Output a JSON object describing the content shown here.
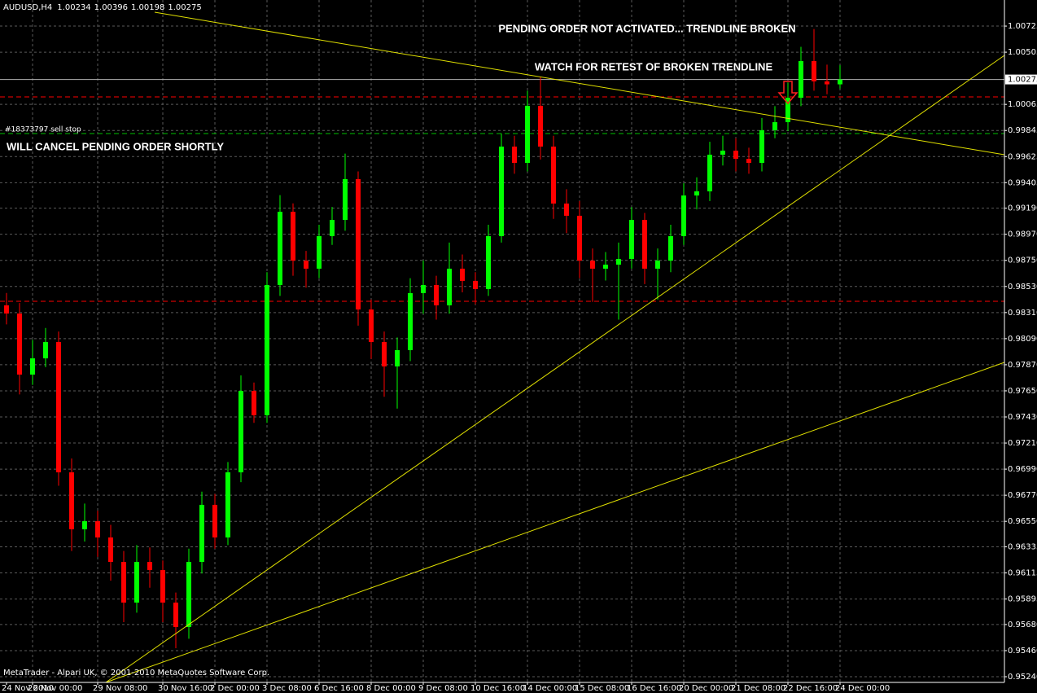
{
  "chart_data": {
    "type": "candlestick",
    "symbol": "AUDUSD,H4",
    "annotations": [
      "PENDING ORDER NOT ACTIVATED... TRENDLINE BROKEN",
      "WATCH FOR RETEST OF BROKEN TRENDLINE",
      "WILL CANCEL PENDING ORDER SHORTLY"
    ],
    "footer": "MetaTrader - Alpari UK, © 2001-2010 MetaQuotes Software Corp.",
    "categories": [
      "24 Nov 2010",
      null,
      "26 Nov 00:00",
      null,
      null,
      null,
      null,
      "29 Nov 08:00",
      null,
      null,
      null,
      null,
      "30 Nov 16:00",
      null,
      null,
      null,
      "2 Dec 00:00",
      null,
      null,
      null,
      "3 Dec 08:00",
      null,
      null,
      null,
      "6 Dec 16:00",
      null,
      null,
      null,
      "8 Dec 00:00",
      null,
      null,
      null,
      "9 Dec 08:00",
      null,
      null,
      null,
      "10 Dec 16:00",
      null,
      null,
      null,
      "14 Dec 00:00",
      null,
      null,
      null,
      "15 Dec 08:00",
      null,
      null,
      null,
      "16 Dec 16:00",
      null,
      null,
      null,
      "20 Dec 00:00",
      null,
      null,
      null,
      "21 Dec 08:00",
      null,
      null,
      null,
      "22 Dec 16:00",
      null,
      null,
      null,
      "24 Dec 00:00"
    ],
    "open": [
      0.98371,
      0.98302,
      0.97787,
      0.97924,
      0.98062,
      0.96963,
      0.96483,
      0.96551,
      0.96414,
      0.96208,
      0.95865,
      0.96208,
      0.96139,
      0.95865,
      0.95659,
      0.96208,
      0.96689,
      0.96414,
      0.96963,
      0.9765,
      0.97444,
      0.98542,
      0.9916,
      0.98748,
      0.9868,
      0.98954,
      0.99091,
      0.99435,
      0.98336,
      0.98062,
      0.97856,
      0.97993,
      0.98474,
      0.98542,
      0.98371,
      0.9868,
      0.98577,
      0.98508,
      0.98954,
      0.99709,
      0.99572,
      1.00053,
      0.99709,
      0.99229,
      0.99126,
      0.98748,
      0.9868,
      0.98714,
      0.98762,
      0.99091,
      0.9868,
      0.98748,
      0.98954,
      0.99297,
      0.99332,
      0.99641,
      0.99675,
      0.99606,
      0.99572,
      0.99847,
      0.99915,
      1.00121,
      1.0043,
      1.00259,
      1.00234
    ],
    "high": [
      0.98475,
      0.9839,
      0.9808,
      0.9818,
      0.9815,
      0.9708,
      0.967,
      0.9664,
      0.9652,
      0.963,
      0.9635,
      0.9633,
      0.9622,
      0.9595,
      0.9632,
      0.968,
      0.9678,
      0.9705,
      0.9778,
      0.9772,
      0.9865,
      0.993,
      0.9923,
      0.9883,
      0.9905,
      0.992,
      0.9965,
      0.995,
      0.9842,
      0.9815,
      0.981,
      0.986,
      0.9875,
      0.9862,
      0.989,
      0.988,
      0.9865,
      0.9905,
      0.9982,
      0.998,
      1.0018,
      1.003,
      0.998,
      0.9935,
      0.9925,
      0.9885,
      0.9882,
      0.989,
      0.992,
      0.9915,
      0.9885,
      0.9905,
      0.994,
      0.9945,
      0.9975,
      0.998,
      0.9978,
      0.997,
      0.9995,
      1.0005,
      1.0025,
      1.0055,
      1.007,
      1.004,
      1.00396
    ],
    "low": [
      0.9821,
      0.9762,
      0.977,
      0.9785,
      0.9685,
      0.963,
      0.9638,
      0.9625,
      0.9605,
      0.957,
      0.9578,
      0.9599,
      0.957,
      0.9548,
      0.9556,
      0.9611,
      0.9632,
      0.9635,
      0.9688,
      0.9738,
      0.9738,
      0.9845,
      0.9862,
      0.9852,
      0.986,
      0.9888,
      0.99,
      0.982,
      0.9792,
      0.976,
      0.975,
      0.979,
      0.983,
      0.9825,
      0.983,
      0.9848,
      0.9838,
      0.9845,
      0.989,
      0.9948,
      0.995,
      0.996,
      0.991,
      0.9898,
      0.986,
      0.984,
      0.9858,
      0.9825,
      0.9868,
      0.9855,
      0.9842,
      0.9865,
      0.9888,
      0.9918,
      0.9925,
      0.9955,
      0.995,
      0.9948,
      0.995,
      0.9978,
      0.9984,
      1.0005,
      1.0018,
      1.0015,
      1.00198
    ],
    "close": [
      0.98302,
      0.97787,
      0.97924,
      0.98062,
      0.96963,
      0.96483,
      0.96551,
      0.96414,
      0.96208,
      0.95865,
      0.96208,
      0.96139,
      0.95865,
      0.95659,
      0.96208,
      0.96689,
      0.96414,
      0.96963,
      0.9765,
      0.97444,
      0.98542,
      0.9916,
      0.98748,
      0.9868,
      0.98954,
      0.99091,
      0.99435,
      0.98336,
      0.98062,
      0.97856,
      0.97993,
      0.98474,
      0.98542,
      0.98371,
      0.9868,
      0.98577,
      0.98508,
      0.98954,
      0.99709,
      0.99572,
      1.00053,
      0.99709,
      0.99229,
      0.99126,
      0.98748,
      0.9868,
      0.98714,
      0.98762,
      0.99091,
      0.9868,
      0.98748,
      0.98954,
      0.99297,
      0.99332,
      0.99641,
      0.99675,
      0.99606,
      0.99572,
      0.99847,
      0.99915,
      1.00121,
      1.0043,
      1.00259,
      1.00234,
      1.00275
    ],
    "up_color": "#00ff00",
    "down_color": "#ff0000",
    "bid": 1.00275,
    "levels": [
      {
        "price": 1.00128,
        "color": "#ff0000"
      },
      {
        "price": 0.99819,
        "color": "#00c000",
        "label": "#18373797 sell stop"
      },
      {
        "price": 0.98405,
        "color": "#ff0000"
      }
    ],
    "ylim": [
      0.95192,
      1.00945
    ],
    "yticks": [
      1.00725,
      1.00505,
      1.00065,
      0.99845,
      0.99625,
      0.99405,
      {
        "value": 0.9919,
        "label": "0.99190"
      },
      {
        "value": 0.9897,
        "label": "0.98970"
      },
      {
        "value": 0.9875,
        "label": "0.98750"
      },
      {
        "value": 0.9853,
        "label": "0.98530"
      },
      {
        "value": 0.9831,
        "label": "0.98310"
      },
      {
        "value": 0.9809,
        "label": "0.98090"
      },
      {
        "value": 0.9787,
        "label": "0.97870"
      },
      {
        "value": 0.9765,
        "label": "0.97650"
      },
      {
        "value": 0.9743,
        "label": "0.97430"
      },
      {
        "value": 0.9721,
        "label": "0.97210"
      },
      {
        "value": 0.9699,
        "label": "0.96990"
      },
      {
        "value": 0.9677,
        "label": "0.96770"
      },
      {
        "value": 0.9655,
        "label": "0.96550"
      },
      0.96335,
      0.96115,
      0.95895,
      {
        "value": 0.9568,
        "label": "0.95680"
      },
      {
        "value": 0.9546,
        "label": "0.95460"
      },
      {
        "value": 0.9524,
        "label": "0.95240"
      }
    ],
    "grid": true
  }
}
